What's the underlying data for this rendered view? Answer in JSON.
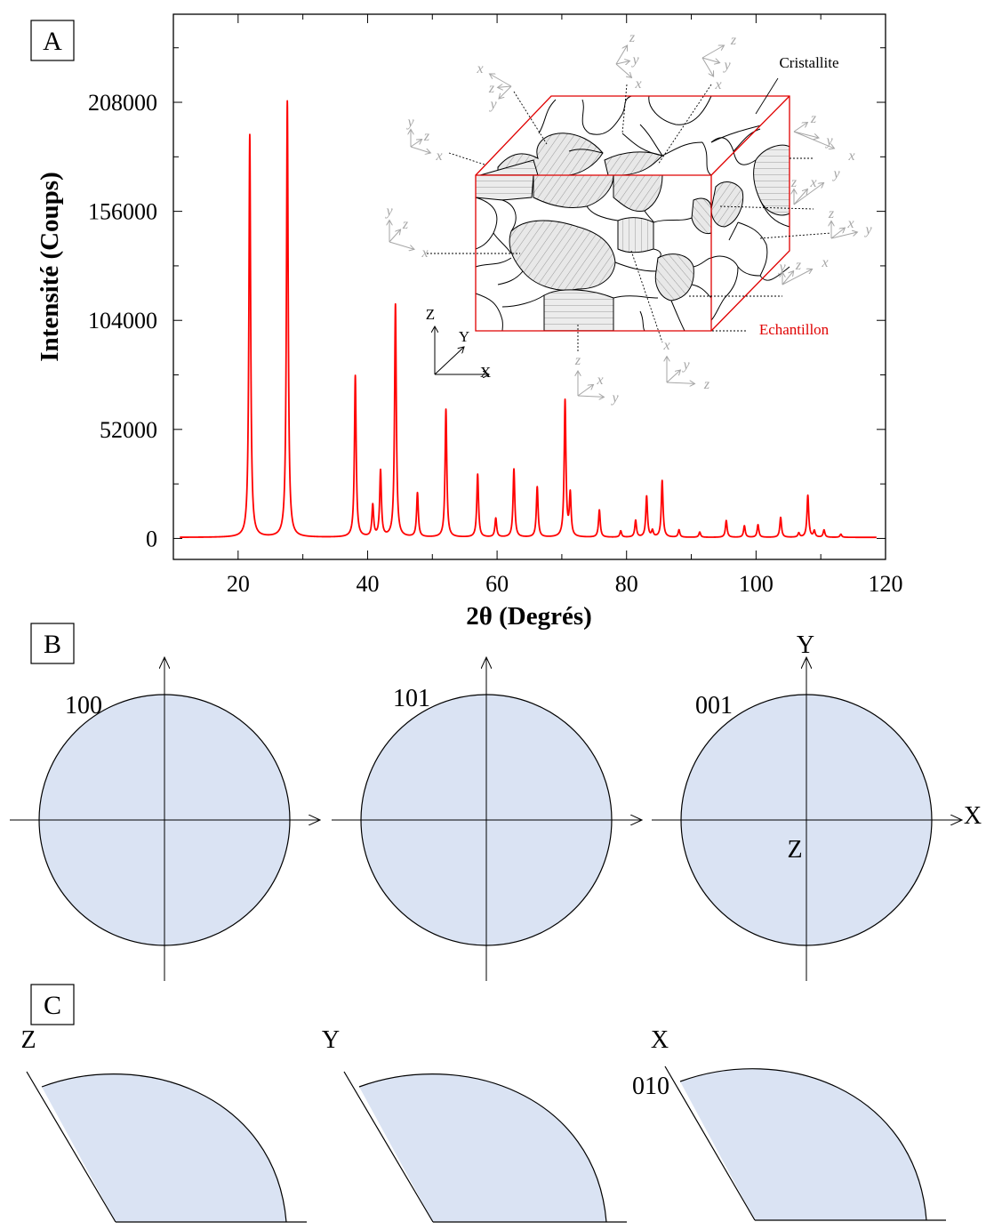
{
  "panels": {
    "A": {
      "label": "A"
    },
    "B": {
      "label": "B",
      "figures": [
        {
          "label": "100"
        },
        {
          "label": "101"
        },
        {
          "label": "001",
          "axis_x": "X",
          "axis_y": "Y",
          "axis_z": "Z"
        }
      ]
    },
    "C": {
      "label": "C",
      "figures": [
        {
          "axis_label": "Z",
          "index_label": ""
        },
        {
          "axis_label": "Y",
          "index_label": ""
        },
        {
          "axis_label": "X",
          "index_label": "010"
        }
      ]
    }
  },
  "inset": {
    "cristallite_label": "Cristallite",
    "echantillon_label": "Echantillon",
    "axis_labels": {
      "Z": "Z",
      "Y": "Y",
      "X": "X"
    },
    "crystal_axis_letters": {
      "x": "x",
      "y": "y",
      "z": "z"
    }
  },
  "colors": {
    "curve": "#ff0000",
    "sample_box": "#e00000",
    "pole_fill": "#dae3f3",
    "hatch": "#9a9a9a",
    "crystal_axes": "#a6a6a6"
  },
  "chart_data": {
    "type": "line",
    "title": "",
    "xlabel": "2θ (Degrés)",
    "ylabel": "Intensité (Coups)",
    "xlim": [
      10,
      120
    ],
    "ylim": [
      -10000,
      250000
    ],
    "xticks": [
      20,
      40,
      60,
      80,
      100,
      120
    ],
    "yticks": [
      0,
      52000,
      104000,
      156000,
      208000
    ],
    "series": [
      {
        "baseline": 500,
        "peaks": [
          {
            "x": 21.8,
            "y": 192000
          },
          {
            "x": 27.6,
            "y": 208000
          },
          {
            "x": 38.1,
            "y": 77000
          },
          {
            "x": 40.8,
            "y": 15000
          },
          {
            "x": 42.0,
            "y": 31500
          },
          {
            "x": 44.3,
            "y": 111000
          },
          {
            "x": 47.7,
            "y": 21000
          },
          {
            "x": 52.1,
            "y": 61000
          },
          {
            "x": 57.0,
            "y": 30000
          },
          {
            "x": 59.8,
            "y": 9000
          },
          {
            "x": 62.6,
            "y": 32500
          },
          {
            "x": 66.2,
            "y": 24000
          },
          {
            "x": 70.5,
            "y": 65000
          },
          {
            "x": 71.3,
            "y": 20000
          },
          {
            "x": 75.8,
            "y": 13000
          },
          {
            "x": 79.1,
            "y": 3000
          },
          {
            "x": 81.4,
            "y": 8000
          },
          {
            "x": 83.1,
            "y": 19500
          },
          {
            "x": 84.0,
            "y": 3000
          },
          {
            "x": 85.5,
            "y": 27000
          },
          {
            "x": 88.1,
            "y": 3500
          },
          {
            "x": 91.3,
            "y": 2500
          },
          {
            "x": 95.4,
            "y": 8000
          },
          {
            "x": 98.2,
            "y": 5500
          },
          {
            "x": 100.3,
            "y": 6000
          },
          {
            "x": 103.8,
            "y": 9500
          },
          {
            "x": 106.6,
            "y": 2000
          },
          {
            "x": 108.0,
            "y": 20000
          },
          {
            "x": 109.0,
            "y": 3000
          },
          {
            "x": 110.5,
            "y": 3500
          },
          {
            "x": 113.1,
            "y": 1500
          }
        ]
      }
    ]
  }
}
